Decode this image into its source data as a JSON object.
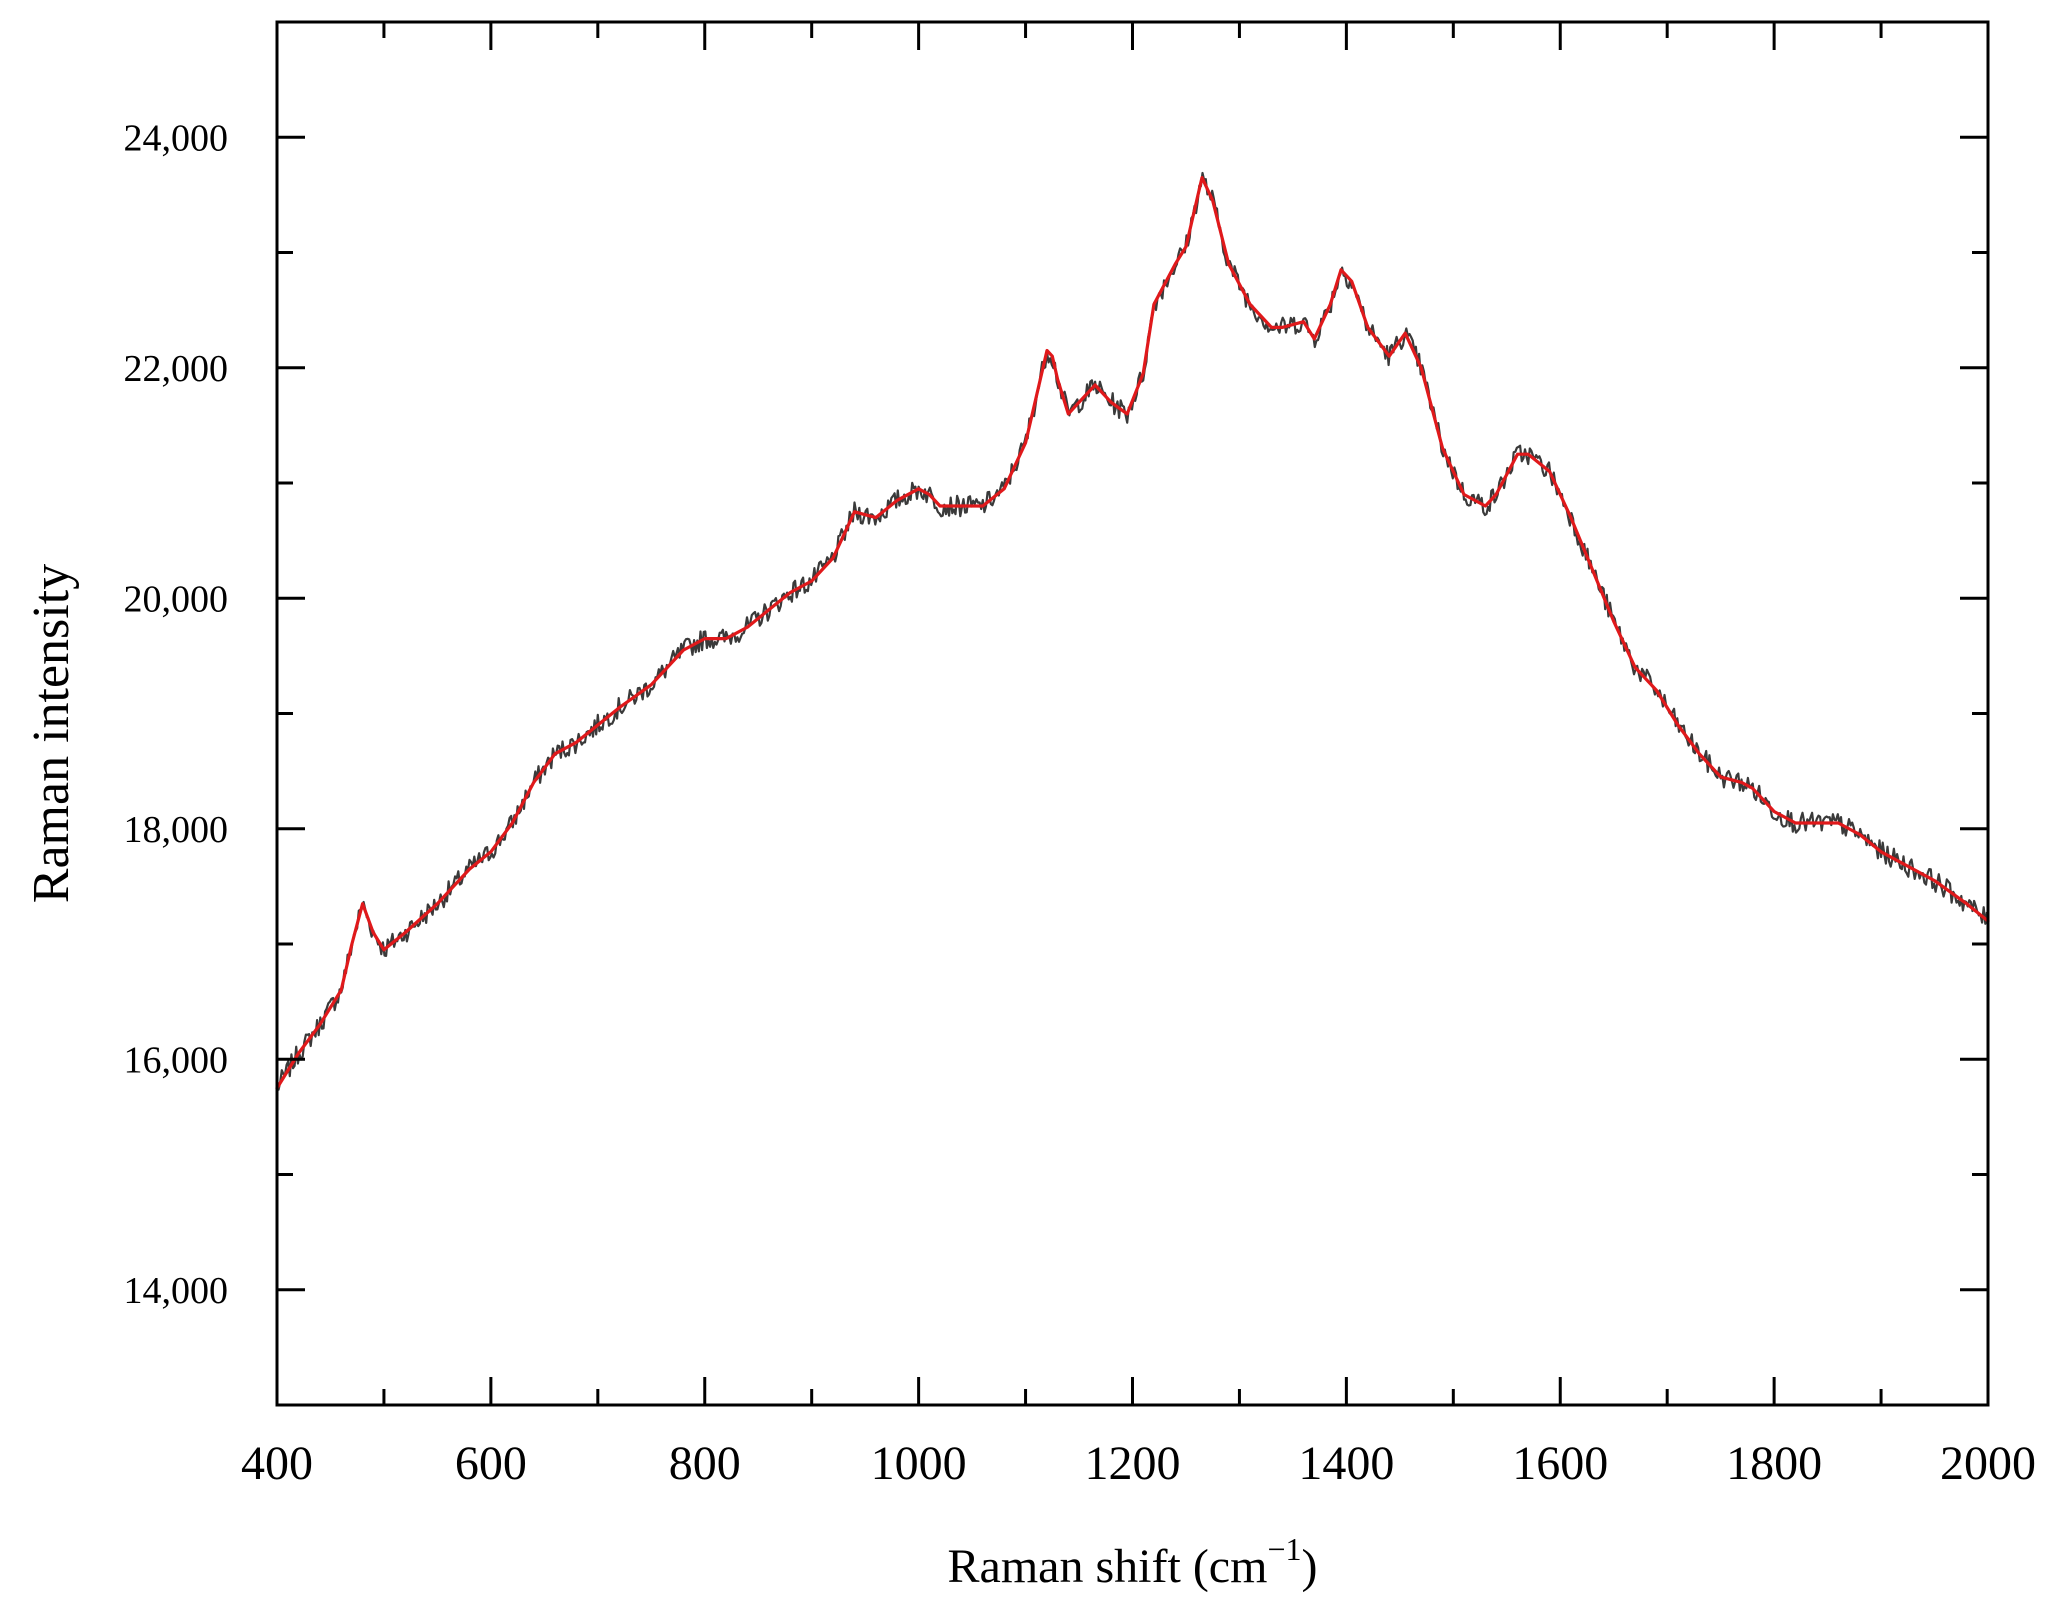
{
  "chart_data": {
    "type": "line",
    "title": "",
    "xlabel": "Raman shift (cm",
    "xlabel_sup": "−1",
    "xlabel_close": ")",
    "ylabel": "Raman intensity",
    "xlim": [
      400,
      2000
    ],
    "ylim": [
      13000,
      25000
    ],
    "x_major_ticks": [
      400,
      600,
      800,
      1000,
      1200,
      1400,
      1600,
      1800,
      2000
    ],
    "x_major_tick_labels": [
      "400",
      "600",
      "800",
      "1000",
      "1200",
      "1400",
      "1600",
      "1800",
      "2000"
    ],
    "x_minor_ticks": [
      500,
      700,
      900,
      1100,
      1300,
      1500,
      1700,
      1900
    ],
    "y_major_ticks": [
      14000,
      16000,
      18000,
      20000,
      22000,
      24000
    ],
    "y_major_tick_labels": [
      "14,000",
      "16,000",
      "18,000",
      "20,000",
      "22,000",
      "24,000"
    ],
    "y_minor_ticks": [
      15000,
      17000,
      19000,
      21000,
      23000
    ],
    "grid": false,
    "legend": "none",
    "series": [
      {
        "style": "raw-noisy",
        "color": "#3a3a3a",
        "noise_amplitude": 90,
        "x": [
          400,
          420,
          440,
          460,
          470,
          480,
          490,
          500,
          520,
          550,
          580,
          600,
          620,
          640,
          660,
          680,
          700,
          720,
          750,
          780,
          800,
          820,
          840,
          860,
          880,
          900,
          920,
          940,
          960,
          980,
          1000,
          1010,
          1020,
          1040,
          1060,
          1080,
          1100,
          1110,
          1120,
          1125,
          1130,
          1140,
          1150,
          1165,
          1180,
          1195,
          1210,
          1220,
          1240,
          1250,
          1265,
          1275,
          1290,
          1310,
          1330,
          1340,
          1360,
          1370,
          1385,
          1395,
          1405,
          1420,
          1440,
          1455,
          1470,
          1490,
          1510,
          1530,
          1540,
          1560,
          1570,
          1590,
          1610,
          1630,
          1650,
          1670,
          1690,
          1710,
          1730,
          1750,
          1770,
          1780,
          1800,
          1820,
          1840,
          1860,
          1880,
          1900,
          1920,
          1950,
          1980,
          2000
        ],
        "y": [
          15750,
          16050,
          16300,
          16600,
          17000,
          17350,
          17100,
          16950,
          17100,
          17350,
          17650,
          17800,
          18050,
          18400,
          18650,
          18750,
          18900,
          19050,
          19250,
          19550,
          19650,
          19650,
          19750,
          19900,
          20050,
          20150,
          20350,
          20750,
          20700,
          20850,
          20950,
          20900,
          20800,
          20800,
          20800,
          20950,
          21350,
          21750,
          22150,
          22100,
          21900,
          21600,
          21700,
          21850,
          21700,
          21600,
          21950,
          22550,
          22900,
          23050,
          23650,
          23450,
          22900,
          22550,
          22350,
          22350,
          22400,
          22250,
          22550,
          22850,
          22750,
          22350,
          22100,
          22300,
          22000,
          21300,
          20900,
          20800,
          20900,
          21250,
          21250,
          21100,
          20700,
          20250,
          19800,
          19400,
          19200,
          18900,
          18650,
          18450,
          18400,
          18350,
          18150,
          18050,
          18050,
          18050,
          17950,
          17800,
          17700,
          17550,
          17350,
          17200
        ]
      },
      {
        "style": "smoothed",
        "color": "#e0191b",
        "x": [
          400,
          420,
          440,
          460,
          470,
          480,
          490,
          500,
          520,
          550,
          580,
          600,
          620,
          640,
          660,
          680,
          700,
          720,
          750,
          780,
          800,
          820,
          840,
          860,
          880,
          900,
          920,
          940,
          960,
          980,
          1000,
          1010,
          1020,
          1040,
          1060,
          1080,
          1100,
          1110,
          1120,
          1125,
          1130,
          1140,
          1150,
          1165,
          1180,
          1195,
          1210,
          1220,
          1240,
          1250,
          1265,
          1275,
          1290,
          1310,
          1330,
          1340,
          1360,
          1370,
          1385,
          1395,
          1405,
          1420,
          1440,
          1455,
          1470,
          1490,
          1510,
          1530,
          1540,
          1560,
          1570,
          1590,
          1610,
          1630,
          1650,
          1670,
          1690,
          1710,
          1730,
          1750,
          1770,
          1780,
          1800,
          1820,
          1840,
          1860,
          1880,
          1900,
          1920,
          1950,
          1980,
          2000
        ],
        "y": [
          15750,
          16050,
          16300,
          16600,
          17000,
          17350,
          17100,
          16950,
          17100,
          17350,
          17650,
          17800,
          18050,
          18400,
          18650,
          18750,
          18900,
          19050,
          19250,
          19550,
          19650,
          19650,
          19750,
          19900,
          20050,
          20150,
          20350,
          20750,
          20700,
          20850,
          20950,
          20900,
          20800,
          20800,
          20800,
          20950,
          21350,
          21750,
          22150,
          22100,
          21900,
          21600,
          21700,
          21850,
          21700,
          21600,
          21950,
          22550,
          22900,
          23050,
          23650,
          23450,
          22900,
          22550,
          22350,
          22350,
          22400,
          22250,
          22550,
          22850,
          22750,
          22350,
          22100,
          22300,
          22000,
          21300,
          20900,
          20800,
          20900,
          21250,
          21250,
          21100,
          20700,
          20250,
          19800,
          19400,
          19200,
          18900,
          18650,
          18450,
          18400,
          18350,
          18150,
          18050,
          18050,
          18050,
          17950,
          17800,
          17700,
          17550,
          17350,
          17200
        ]
      }
    ]
  }
}
